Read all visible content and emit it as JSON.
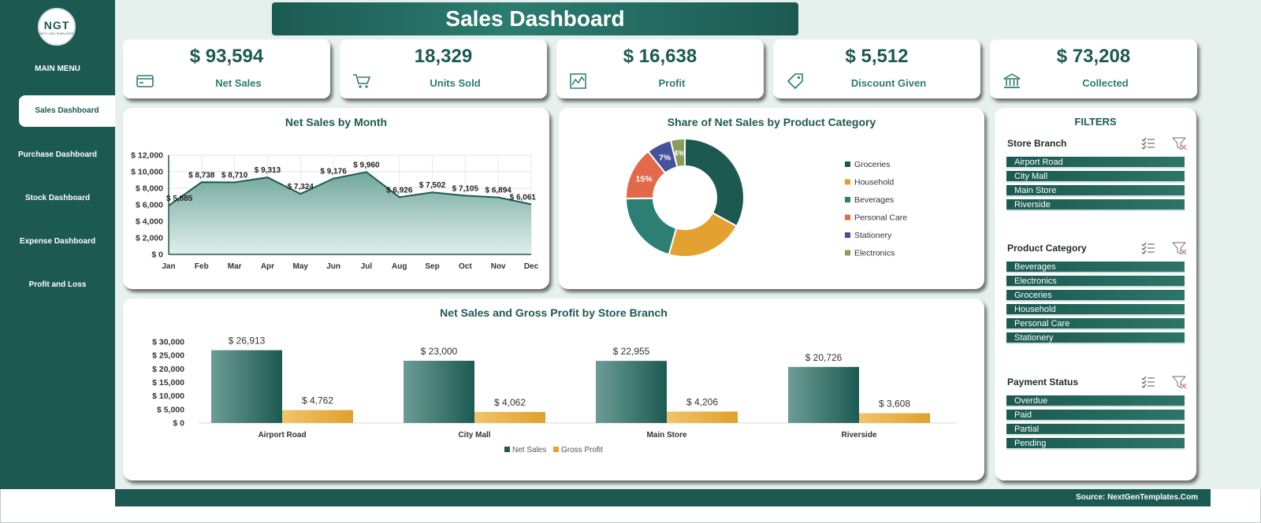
{
  "brand": {
    "logo_text": "NGT",
    "logo_sub": "NEXT GEN TEMPLATES"
  },
  "sidebar": {
    "menu_title": "MAIN MENU",
    "items": [
      {
        "label": "Sales Dashboard",
        "active": true
      },
      {
        "label": "Purchase Dashboard",
        "active": false
      },
      {
        "label": "Stock Dashboard",
        "active": false
      },
      {
        "label": "Expense Dashboard",
        "active": false
      },
      {
        "label": "Profit and Loss",
        "active": false
      }
    ]
  },
  "header": {
    "title": "Sales Dashboard"
  },
  "kpis": [
    {
      "value": "$ 93,594",
      "label": "Net Sales",
      "icon": "credit-card-icon"
    },
    {
      "value": "18,329",
      "label": "Units Sold",
      "icon": "shopping-cart-icon"
    },
    {
      "value": "$ 16,638",
      "label": "Profit",
      "icon": "line-chart-icon"
    },
    {
      "value": "$ 5,512",
      "label": "Discount Given",
      "icon": "price-tag-icon"
    },
    {
      "value": "$ 73,208",
      "label": "Collected",
      "icon": "bank-icon"
    }
  ],
  "chart_titles": {
    "monthly": "Net Sales by Month",
    "category": "Share of Net Sales by Product Category",
    "branch": "Net Sales and Gross Profit by Store Branch"
  },
  "chart_data": [
    {
      "type": "area",
      "title": "Net Sales by Month",
      "categories": [
        "Jan",
        "Feb",
        "Mar",
        "Apr",
        "May",
        "Jun",
        "Jul",
        "Aug",
        "Sep",
        "Oct",
        "Nov",
        "Dec"
      ],
      "values": [
        5885,
        8738,
        8710,
        9313,
        7324,
        9176,
        9960,
        6926,
        7502,
        7105,
        6894,
        6061
      ],
      "data_labels": [
        "$ 5,885",
        "$ 8,738",
        "$ 8,710",
        "$ 9,313",
        "$ 7,324",
        "$ 9,176",
        "$ 9,960",
        "$ 6,926",
        "$ 7,502",
        "$ 7,105",
        "$ 6,894",
        "$ 6,061"
      ],
      "ylim": [
        0,
        12000
      ],
      "yticks": [
        "$ 0",
        "$ 2,000",
        "$ 4,000",
        "$ 6,000",
        "$ 8,000",
        "$ 10,000",
        "$ 12,000"
      ],
      "grid": true
    },
    {
      "type": "pie",
      "title": "Share of Net Sales by Product Category",
      "categories": [
        "Groceries",
        "Household",
        "Beverages",
        "Personal Care",
        "Stationery",
        "Electronics"
      ],
      "values": [
        34,
        22,
        21,
        15,
        7,
        4
      ],
      "data_labels": [
        "",
        "",
        "",
        "15%",
        "7%",
        "4%"
      ],
      "colors": [
        "#1c5a51",
        "#e3a22f",
        "#2c7f72",
        "#e26a4a",
        "#45519a",
        "#8a9b5a"
      ],
      "legend": "right"
    },
    {
      "type": "bar",
      "title": "Net Sales and Gross Profit by Store Branch",
      "categories": [
        "Airport Road",
        "City Mall",
        "Main Store",
        "Riverside"
      ],
      "series": [
        {
          "name": "Net Sales",
          "values": [
            26913,
            23000,
            22955,
            20726
          ],
          "labels": [
            "$ 26,913",
            "$ 23,000",
            "$ 22,955",
            "$ 20,726"
          ],
          "color": "#1c5a51"
        },
        {
          "name": "Gross Profit",
          "values": [
            4762,
            4062,
            4206,
            3608
          ],
          "labels": [
            "$ 4,762",
            "$ 4,062",
            "$ 4,206",
            "$ 3,608"
          ],
          "color": "#e3a22f"
        }
      ],
      "ylim": [
        0,
        30000
      ],
      "yticks": [
        "$ 0",
        "$ 5,000",
        "$ 10,000",
        "$ 15,000",
        "$ 20,000",
        "$ 25,000",
        "$ 30,000"
      ],
      "legend": "bottom"
    }
  ],
  "filters": {
    "title": "FILTERS",
    "groups": [
      {
        "title": "Store Branch",
        "items": [
          "Airport Road",
          "City Mall",
          "Main Store",
          "Riverside"
        ]
      },
      {
        "title": "Product Category",
        "items": [
          "Beverages",
          "Electronics",
          "Groceries",
          "Household",
          "Personal Care",
          "Stationery"
        ]
      },
      {
        "title": "Payment Status",
        "items": [
          "Overdue",
          "Paid",
          "Partial",
          "Pending"
        ]
      }
    ]
  },
  "footer": {
    "source": "Source: NextGenTemplates.Com"
  }
}
